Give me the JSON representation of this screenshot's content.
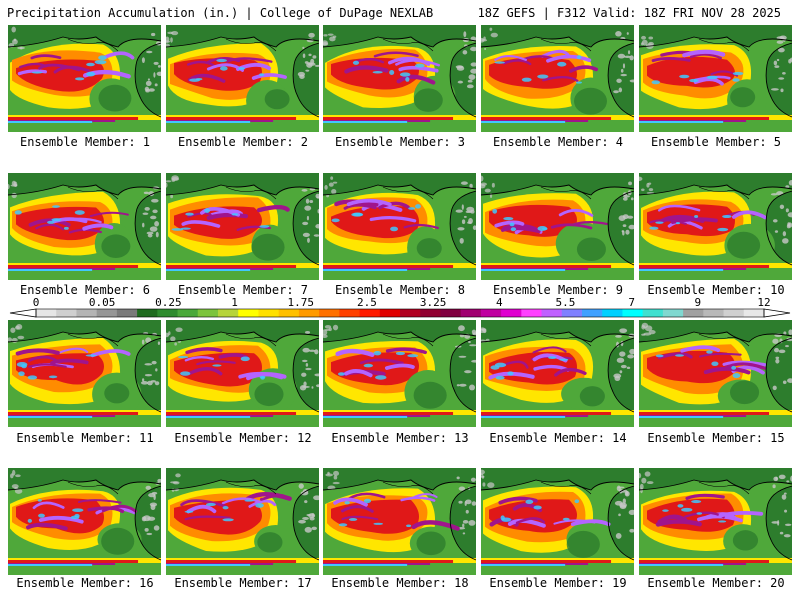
{
  "header": {
    "title": "Precipitation Accumulation (in.) | College of DuPage NEXLAB",
    "run_info": "18Z GEFS | F312 Valid: 18Z FRI NOV 28 2025"
  },
  "members": [
    "Ensemble Member: 1",
    "Ensemble Member: 2",
    "Ensemble Member: 3",
    "Ensemble Member: 4",
    "Ensemble Member: 5",
    "Ensemble Member: 6",
    "Ensemble Member: 7",
    "Ensemble Member: 8",
    "Ensemble Member: 9",
    "Ensemble Member: 10",
    "Ensemble Member: 11",
    "Ensemble Member: 12",
    "Ensemble Member: 13",
    "Ensemble Member: 14",
    "Ensemble Member: 15",
    "Ensemble Member: 16",
    "Ensemble Member: 17",
    "Ensemble Member: 18",
    "Ensemble Member: 19",
    "Ensemble Member: 20"
  ],
  "colorbar": {
    "labels": [
      "0",
      "0.05",
      "0.25",
      "1",
      "1.75",
      "2.5",
      "3.25",
      "4",
      "5.5",
      "7",
      "9",
      "12"
    ],
    "colors": [
      "#e6e6e6",
      "#cfcfcf",
      "#b4b4b4",
      "#969696",
      "#7a7a7a",
      "#1f6b1f",
      "#2e8b2e",
      "#4aa83a",
      "#7cc43c",
      "#b6d43a",
      "#ffff00",
      "#ffe000",
      "#ffc000",
      "#ff9a00",
      "#ff7000",
      "#ff4000",
      "#ff1a00",
      "#e00000",
      "#b00020",
      "#900030",
      "#800040",
      "#a00070",
      "#c000a0",
      "#e000d0",
      "#ff40ff",
      "#c060ff",
      "#8080ff",
      "#40a0ff",
      "#00d0ff",
      "#00ffff",
      "#40e0d0",
      "#80d8d0",
      "#a0a0a0",
      "#b8b8b8",
      "#d0d0d0",
      "#e8e8e8"
    ]
  },
  "palette": {
    "land": "#2d7d2d",
    "ocean_low": "#4fa83a",
    "moist": "#ffe600",
    "wet": "#ff8c00",
    "heavy": "#e01818",
    "extreme": "#a0148c",
    "max": "#b464ff",
    "cyan": "#40c8ff",
    "snow": "#c8c8c8",
    "coast": "#000000"
  }
}
